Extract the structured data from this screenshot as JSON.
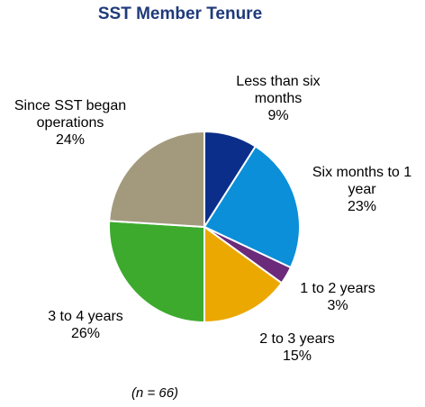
{
  "chart_data": {
    "type": "pie",
    "title": "SST Member Tenure",
    "title_color": "#1F3A7A",
    "note": "(n = 66)",
    "start_angle_deg": 0,
    "direction": "clockwise",
    "slices": [
      {
        "label_lines": [
          "Less than six",
          "months"
        ],
        "value_label": "9%",
        "value": 9,
        "color": "#0B2E8A"
      },
      {
        "label_lines": [
          "Six months to 1",
          "year"
        ],
        "value_label": "23%",
        "value": 23,
        "color": "#0A8FD8"
      },
      {
        "label_lines": [
          "1 to 2 years"
        ],
        "value_label": "3%",
        "value": 3,
        "color": "#6B2A7A"
      },
      {
        "label_lines": [
          "2 to 3 years"
        ],
        "value_label": "15%",
        "value": 15,
        "color": "#EBA800"
      },
      {
        "label_lines": [
          "3 to 4 years"
        ],
        "value_label": "26%",
        "value": 26,
        "color": "#3DAA2E"
      },
      {
        "label_lines": [
          "Since SST began",
          "operations"
        ],
        "value_label": "24%",
        "value": 24,
        "color": "#A39A7E"
      }
    ]
  }
}
